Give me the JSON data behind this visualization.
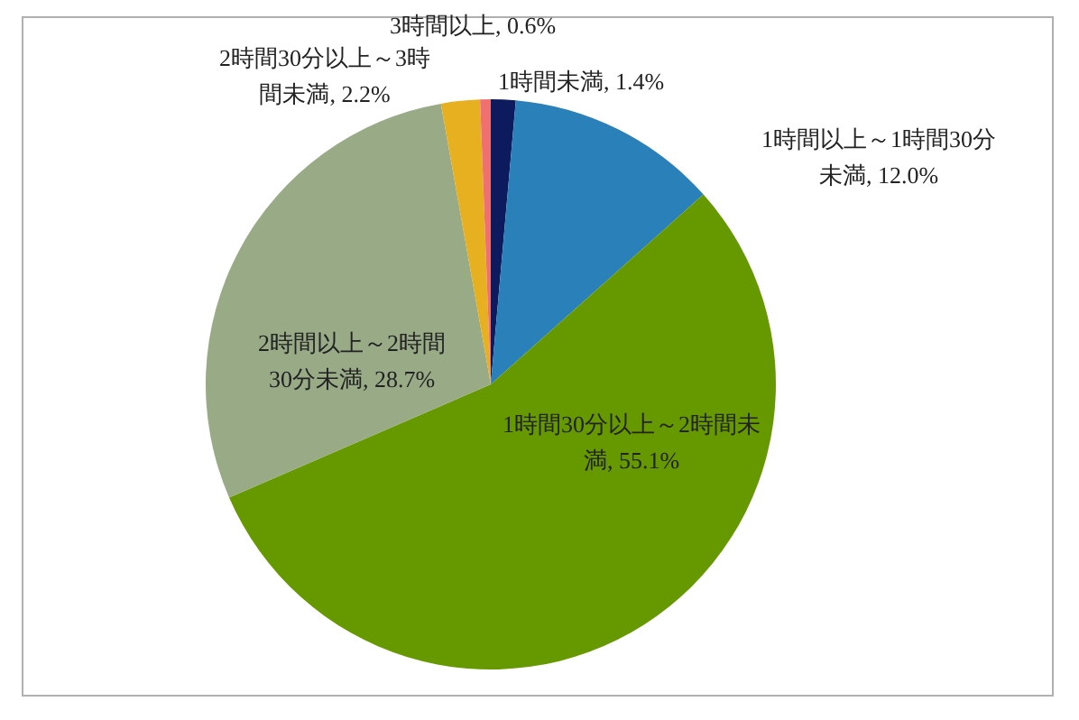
{
  "chart_data": {
    "type": "pie",
    "categories": [
      "1時間未満",
      "1時間以上～1時間30分未満",
      "1時間30分以上～2時間未満",
      "2時間以上～2時間30分未満",
      "2時間30分以上～3時間未満",
      "3時間以上"
    ],
    "values": [
      1.4,
      12.0,
      55.1,
      28.7,
      2.2,
      0.6
    ],
    "value_labels": [
      "1.4%",
      "12.0%",
      "55.1%",
      "28.7%",
      "2.2%",
      "0.6%"
    ],
    "colors": [
      "#0d1a5e",
      "#2a80b9",
      "#669900",
      "#98aa86",
      "#e6b020",
      "#f07070"
    ]
  }
}
